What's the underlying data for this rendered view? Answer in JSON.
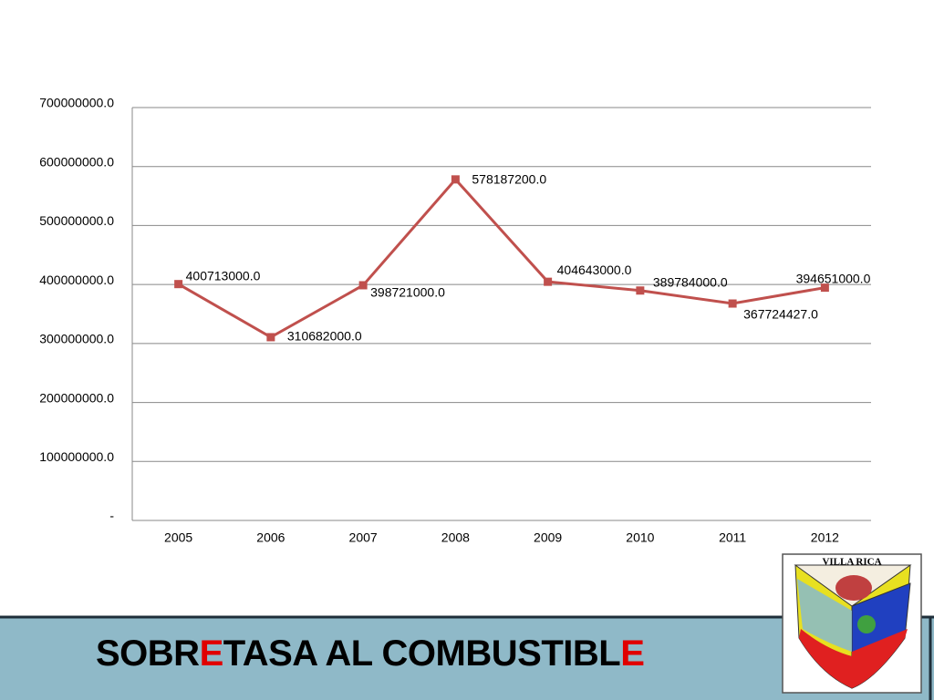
{
  "chart_data": {
    "type": "line",
    "title": [
      "SOBR",
      "E",
      "TASA  AL COMBUSTIBL",
      "E"
    ],
    "categories": [
      "2005",
      "2006",
      "2007",
      "2008",
      "2009",
      "2010",
      "2011",
      "2012"
    ],
    "series": [
      {
        "name": "Sobretasa",
        "color": "#c0504d",
        "values": [
          400713000,
          310682000,
          398721000,
          578187200,
          404643000,
          389784000,
          367724427,
          394651000
        ],
        "value_labels": [
          "400713000.0",
          "310682000.0",
          "398721000.0",
          "578187200.0",
          "404643000.0",
          "389784000.0",
          "367724427.0",
          "394651000.0"
        ]
      }
    ],
    "ylim": [
      0,
      700000000
    ],
    "yticks": [
      {
        "value": 0,
        "label": "-"
      },
      {
        "value": 100000000,
        "label": "100000000.0"
      },
      {
        "value": 200000000,
        "label": "200000000.0"
      },
      {
        "value": 300000000,
        "label": "300000000.0"
      },
      {
        "value": 400000000,
        "label": "400000000.0"
      },
      {
        "value": 500000000,
        "label": "500000000.0"
      },
      {
        "value": 600000000,
        "label": "600000000.0"
      },
      {
        "value": 700000000,
        "label": "700000000.0"
      }
    ],
    "grid": true
  },
  "logo_text": "VILLA RICA"
}
